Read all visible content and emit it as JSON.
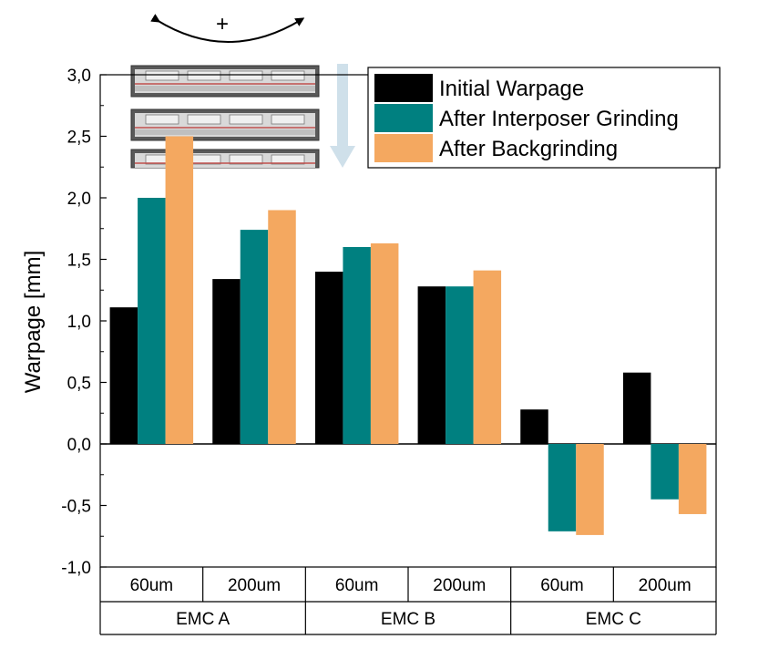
{
  "chart_data": {
    "type": "bar",
    "ylabel": "Warpage [mm]",
    "ylim": [
      -1.0,
      3.0
    ],
    "y_ticks": [
      "-1,0",
      "-0,5",
      "0,0",
      "0,5",
      "1,0",
      "1,5",
      "2,0",
      "2,5",
      "3,0"
    ],
    "categories": [
      "60um",
      "200um",
      "60um",
      "200um",
      "60um",
      "200um"
    ],
    "groups": [
      {
        "label": "EMC A",
        "span": 2
      },
      {
        "label": "EMC B",
        "span": 2
      },
      {
        "label": "EMC C",
        "span": 2
      }
    ],
    "series": [
      {
        "name": "Initial Warpage",
        "color": "#000000",
        "values": [
          1.11,
          1.34,
          1.4,
          1.28,
          0.28,
          0.58
        ]
      },
      {
        "name": "After Interposer Grinding",
        "color": "#008080",
        "values": [
          2.0,
          1.74,
          1.6,
          1.28,
          -0.71,
          -0.45
        ]
      },
      {
        "name": "After Backgrinding",
        "color": "#F4A860",
        "values": [
          2.5,
          1.9,
          1.63,
          1.41,
          -0.74,
          -0.57
        ]
      }
    ],
    "legend_position": "top-right",
    "grid": false,
    "annotation": {
      "symbol": "+"
    }
  }
}
